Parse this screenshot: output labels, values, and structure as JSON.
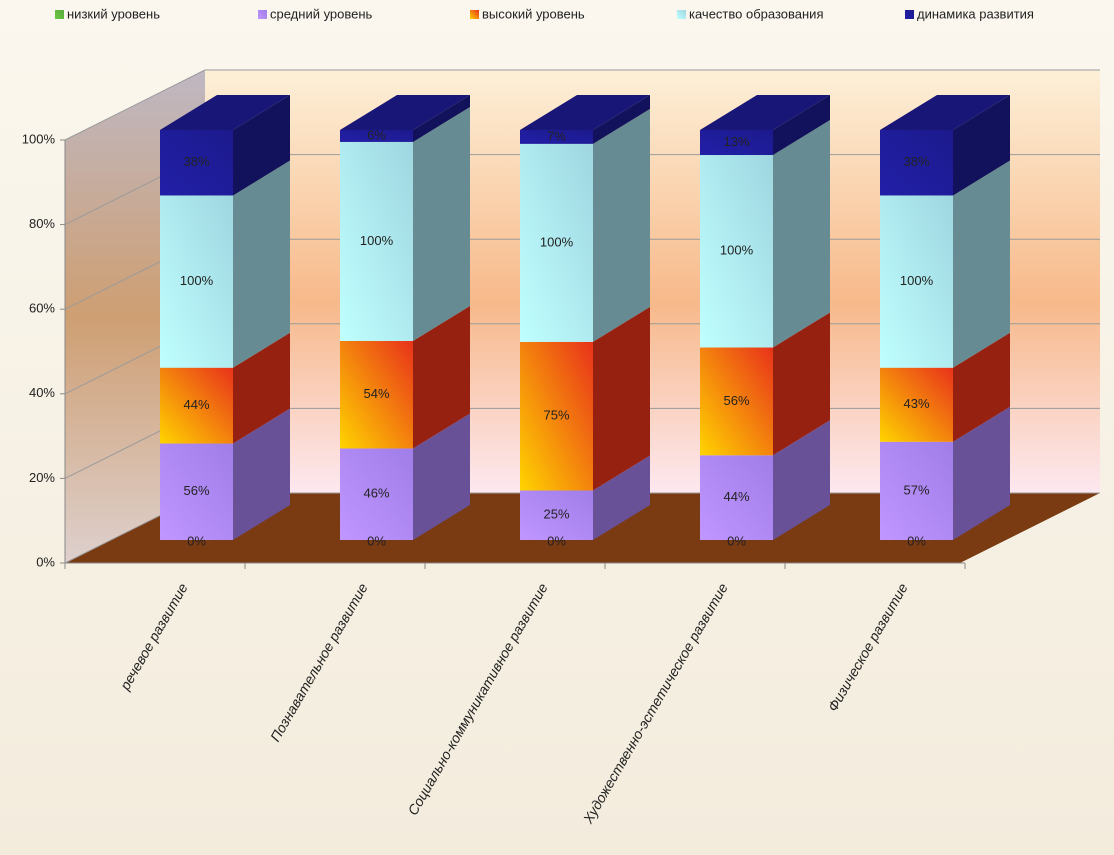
{
  "chart_data": {
    "type": "stacked_bar_3d",
    "categories": [
      "речевое развитие",
      "Познавательное развитие",
      "Социально-коммуникативное развитие",
      "Художественно-эстетическое развитие",
      "Физическое развитие"
    ],
    "series": [
      {
        "name": "низкий уровень",
        "color": "#5aa83a",
        "values": [
          0,
          0,
          0,
          0,
          0
        ],
        "value_labels": [
          "0%",
          "0%",
          "0%",
          "0%",
          "0%"
        ]
      },
      {
        "name": "средний уровень",
        "color": "#a07de8",
        "values": [
          56,
          46,
          25,
          44,
          57
        ],
        "value_labels": [
          "56%",
          "46%",
          "25%",
          "44%",
          "57%"
        ]
      },
      {
        "name": "высокий уровень",
        "color": "#e8321a",
        "values": [
          44,
          54,
          75,
          56,
          43
        ],
        "value_labels": [
          "44%",
          "54%",
          "75%",
          "56%",
          "43%"
        ]
      },
      {
        "name": "качество образования",
        "color": "#9fd6e0",
        "values": [
          100,
          100,
          100,
          100,
          100
        ],
        "value_labels": [
          "100%",
          "100%",
          "100%",
          "100%",
          "100%"
        ]
      },
      {
        "name": "динамика развития",
        "color": "#1c1a8c",
        "values": [
          38,
          6,
          7,
          13,
          38
        ],
        "value_labels": [
          "38%",
          "6%",
          "7%",
          "13%",
          "38%"
        ]
      }
    ],
    "ylim": [
      0,
      100
    ],
    "yticks": [
      {
        "value": 0,
        "label": "0%"
      },
      {
        "value": 20,
        "label": "20%"
      },
      {
        "value": 40,
        "label": "40%"
      },
      {
        "value": 60,
        "label": "60%"
      },
      {
        "value": 80,
        "label": "80%"
      },
      {
        "value": 100,
        "label": "100%"
      }
    ],
    "grid": true
  }
}
